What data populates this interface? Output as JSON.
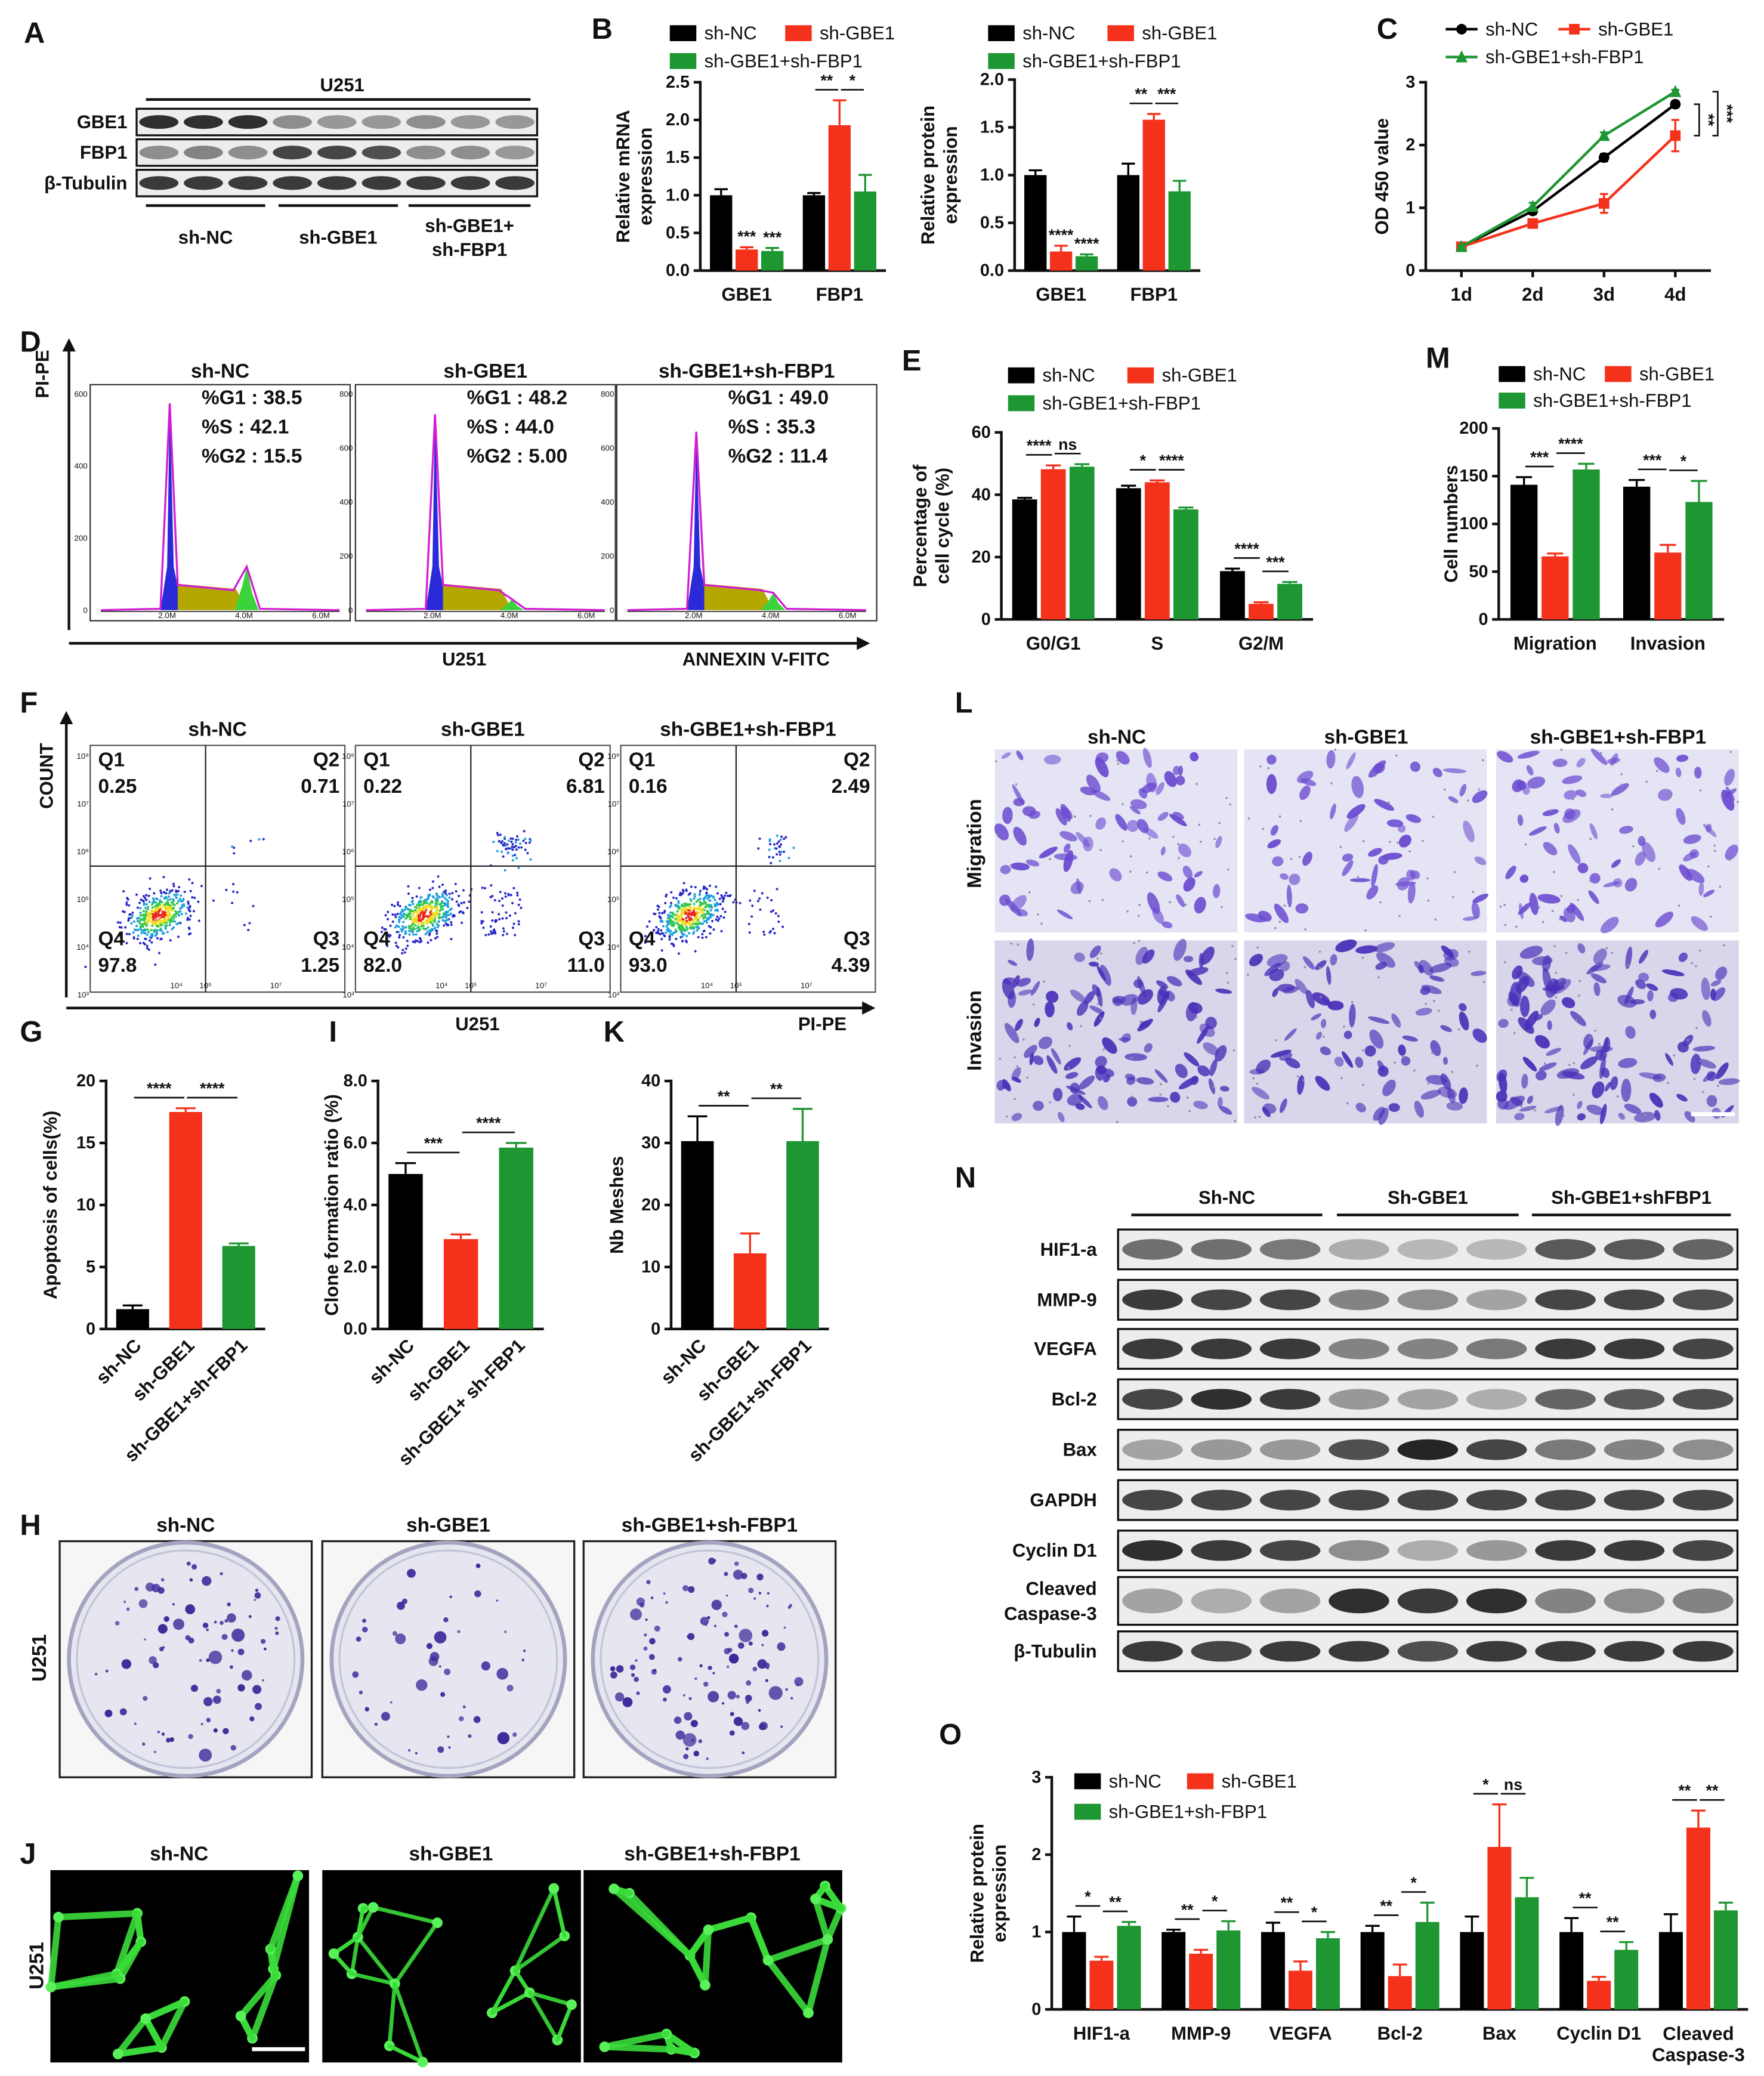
{
  "figure": {
    "panel_letters": [
      "A",
      "B",
      "C",
      "D",
      "E",
      "M",
      "F",
      "L",
      "G",
      "I",
      "K",
      "N",
      "H",
      "J",
      "O"
    ],
    "blot_A": {
      "cell_line": "U251",
      "proteins": [
        "GBE1",
        "FBP1",
        "β-Tubulin"
      ],
      "groups": [
        "sh-NC",
        "sh-GBE1",
        [
          "sh-GBE1+",
          "sh-FBP1"
        ]
      ]
    },
    "cell_cycle_D": {
      "y_axis": "PI-PE",
      "x_axis_left": "U251",
      "x_axis_right": "ANNEXIN V-FITC",
      "xticks": [
        "2.0M",
        "4.0M",
        "6.0M"
      ],
      "plots": [
        {
          "title": "sh-NC",
          "stats": [
            "%G1 : 38.5",
            "%S : 42.1",
            "%G2 : 15.5"
          ],
          "yticks": [
            "600",
            "400",
            "200",
            "0"
          ]
        },
        {
          "title": "sh-GBE1",
          "stats": [
            "%G1 : 48.2",
            "%S : 44.0",
            "%G2 : 5.00"
          ],
          "yticks": [
            "800",
            "600",
            "400",
            "200",
            "0"
          ]
        },
        {
          "title": "sh-GBE1+sh-FBP1",
          "stats": [
            "%G1 : 49.0",
            "%S : 35.3",
            "%G2 : 11.4"
          ],
          "yticks": [
            "800",
            "600",
            "400",
            "200",
            "0"
          ]
        }
      ]
    },
    "apoptosis_F": {
      "y_axis": "COUNT",
      "x_axis_left": "U251",
      "x_axis_right": "PI-PE",
      "yticks": [
        "10⁸",
        "10⁷",
        "10⁶",
        "10⁵",
        "10⁴",
        "10³"
      ],
      "xticks": [
        "10⁴",
        "10⁵",
        "10⁷"
      ],
      "plots": [
        {
          "title": "sh-NC",
          "quadrants": [
            [
              "Q1",
              "0.25"
            ],
            [
              "Q2",
              "0.71"
            ],
            [
              "Q3",
              "1.25"
            ],
            [
              "Q4",
              "97.8"
            ]
          ]
        },
        {
          "title": "sh-GBE1",
          "quadrants": [
            [
              "Q1",
              "0.22"
            ],
            [
              "Q2",
              "6.81"
            ],
            [
              "Q3",
              "11.0"
            ],
            [
              "Q4",
              "82.0"
            ]
          ]
        },
        {
          "title": "sh-GBE1+sh-FBP1",
          "quadrants": [
            [
              "Q1",
              "0.16"
            ],
            [
              "Q2",
              "2.49"
            ],
            [
              "Q3",
              "4.39"
            ],
            [
              "Q4",
              "93.0"
            ]
          ]
        }
      ]
    },
    "transwell_L": {
      "columns": [
        "sh-NC",
        "sh-GBE1",
        "sh-GBE1+sh-FBP1"
      ],
      "rows": [
        "Migration",
        "Invasion"
      ]
    },
    "colony_H": {
      "columns": [
        "sh-NC",
        "sh-GBE1",
        "sh-GBE1+sh-FBP1"
      ],
      "row": "U251"
    },
    "tube_J": {
      "columns": [
        "sh-NC",
        "sh-GBE1",
        "sh-GBE1+sh-FBP1"
      ],
      "row": "U251"
    },
    "blot_N": {
      "groups": [
        "Sh-NC",
        "Sh-GBE1",
        "Sh-GBE1+shFBP1"
      ],
      "proteins": [
        "HIF1-a",
        "MMP-9",
        "VEGFA",
        "Bcl-2",
        "Bax",
        "GAPDH",
        "Cyclin D1",
        [
          "Cleaved",
          "Caspase-3"
        ],
        "β-Tubulin"
      ]
    }
  },
  "chart_data": [
    {
      "type": "bar",
      "categories": [
        "GBE1",
        "FBP1"
      ],
      "ylabel": [
        "Relative  mRNA",
        "expression"
      ],
      "series": [
        {
          "name": "sh-NC",
          "color": "#000000",
          "values": [
            1.0,
            1.0
          ],
          "errors": [
            0.08,
            0.03
          ]
        },
        {
          "name": "sh-GBE1",
          "color": "#f4321c",
          "values": [
            0.28,
            1.93
          ],
          "errors": [
            0.03,
            0.33
          ]
        },
        {
          "name": "sh-GBE1+sh-FBP1",
          "color": "#1e9632",
          "values": [
            0.26,
            1.05
          ],
          "errors": [
            0.04,
            0.22
          ]
        }
      ],
      "ylim": [
        0,
        2.5
      ],
      "yticks": [
        {
          "value": 0,
          "label": "0.0"
        },
        0.5,
        {
          "value": 1,
          "label": "1.0"
        },
        1.5,
        {
          "value": 2,
          "label": "2.0"
        },
        2.5
      ],
      "annotations": [
        "***",
        "***",
        "**",
        "*"
      ]
    },
    {
      "type": "bar",
      "categories": [
        "GBE1",
        "FBP1"
      ],
      "ylabel": [
        "Relative  protein",
        "expression"
      ],
      "series": [
        {
          "name": "sh-NC",
          "color": "#000000",
          "values": [
            1.0,
            1.0
          ],
          "errors": [
            0.05,
            0.12
          ]
        },
        {
          "name": "sh-GBE1",
          "color": "#f4321c",
          "values": [
            0.2,
            1.58
          ],
          "errors": [
            0.06,
            0.06
          ]
        },
        {
          "name": "sh-GBE1+sh-FBP1",
          "color": "#1e9632",
          "values": [
            0.15,
            0.83
          ],
          "errors": [
            0.02,
            0.11
          ]
        }
      ],
      "ylim": [
        0,
        2
      ],
      "yticks": [
        {
          "value": 0,
          "label": "0.0"
        },
        0.5,
        {
          "value": 1,
          "label": "1.0"
        },
        1.5,
        {
          "value": 2,
          "label": "2.0"
        }
      ],
      "annotations": [
        "****",
        "****",
        "**",
        "***"
      ]
    },
    {
      "type": "line",
      "categories": [
        "1d",
        "2d",
        "3d",
        "4d"
      ],
      "ylabel": "OD 450 value",
      "series": [
        {
          "name": "sh-NC",
          "color": "#000000",
          "marker": "circle",
          "values": [
            0.38,
            0.95,
            1.8,
            2.65
          ],
          "errors": [
            0.02,
            0.05,
            0.06,
            0.05
          ]
        },
        {
          "name": "sh-GBE1",
          "color": "#f4321c",
          "marker": "square",
          "values": [
            0.38,
            0.75,
            1.07,
            2.15
          ],
          "errors": [
            0.02,
            0.04,
            0.15,
            0.25
          ]
        },
        {
          "name": "sh-GBE1+sh-FBP1",
          "color": "#1e9632",
          "marker": "triangle",
          "values": [
            0.38,
            1.02,
            2.15,
            2.85
          ],
          "errors": [
            0.02,
            0.06,
            0.05,
            0.03
          ]
        }
      ],
      "ylim": [
        0,
        3
      ],
      "yticks": [
        0,
        1,
        2,
        3
      ],
      "annotations": [
        "**",
        "***"
      ]
    },
    {
      "type": "bar",
      "categories": [
        "G0/G1",
        "S",
        "G2/M"
      ],
      "ylabel": [
        "Percentage of",
        "cell cycle (%)"
      ],
      "series": [
        {
          "name": "sh-NC",
          "color": "#000000",
          "values": [
            38.5,
            42.1,
            15.5
          ],
          "errors": [
            0.5,
            0.8,
            0.8
          ]
        },
        {
          "name": "sh-GBE1",
          "color": "#f4321c",
          "values": [
            48.2,
            44.0,
            5.0
          ],
          "errors": [
            1.2,
            0.6,
            0.5
          ]
        },
        {
          "name": "sh-GBE1+sh-FBP1",
          "color": "#1e9632",
          "values": [
            49.0,
            35.3,
            11.4
          ],
          "errors": [
            0.8,
            0.6,
            0.6
          ]
        }
      ],
      "ylim": [
        0,
        60
      ],
      "yticks": [
        0,
        20,
        40,
        60
      ],
      "annotations": [
        "****",
        "ns",
        "*",
        "****",
        "****",
        "***"
      ]
    },
    {
      "type": "bar",
      "categories": [
        "Migration",
        "Invasion"
      ],
      "ylabel": "Cell numbers",
      "series": [
        {
          "name": "sh-NC",
          "color": "#000000",
          "values": [
            141,
            139
          ],
          "errors": [
            8,
            7
          ]
        },
        {
          "name": "sh-GBE1",
          "color": "#f4321c",
          "values": [
            66,
            70
          ],
          "errors": [
            3,
            8
          ]
        },
        {
          "name": "sh-GBE1+sh-FBP1",
          "color": "#1e9632",
          "values": [
            157,
            123
          ],
          "errors": [
            6,
            22
          ]
        }
      ],
      "ylim": [
        0,
        200
      ],
      "yticks": [
        0,
        50,
        100,
        150,
        200
      ],
      "annotations": [
        "***",
        "****",
        "***",
        "*"
      ]
    },
    {
      "type": "bar",
      "categories": [
        "sh-NC",
        "sh-GBE1",
        "sh-GBE1+sh-FBP1"
      ],
      "ylabel": "Apoptosis of cells(%)",
      "values": [
        1.6,
        17.5,
        6.7
      ],
      "errors": [
        0.3,
        0.3,
        0.2
      ],
      "colors": [
        "#000000",
        "#f4321c",
        "#1e9632"
      ],
      "ylim": [
        0,
        20
      ],
      "yticks": [
        0,
        5,
        10,
        15,
        20
      ],
      "annotations": [
        "****",
        "****"
      ]
    },
    {
      "type": "bar",
      "categories": [
        "sh-NC",
        "sh-GBE1",
        "sh-GBE1+ sh-FBP1"
      ],
      "ylabel": "Clone formation ratio (%)",
      "values": [
        5.0,
        2.9,
        5.85
      ],
      "errors": [
        0.35,
        0.15,
        0.15
      ],
      "colors": [
        "#000000",
        "#f4321c",
        "#1e9632"
      ],
      "ylim": [
        0,
        8
      ],
      "yticks": [
        {
          "value": 0,
          "label": "0.0"
        },
        {
          "value": 2,
          "label": "2.0"
        },
        {
          "value": 4,
          "label": "4.0"
        },
        {
          "value": 6,
          "label": "6.0"
        },
        {
          "value": 8,
          "label": "8.0"
        }
      ],
      "annotations": [
        "***",
        "****"
      ]
    },
    {
      "type": "bar",
      "categories": [
        "sh-NC",
        "sh-GBE1",
        "sh-GBE1+sh-FBP1"
      ],
      "ylabel": "Nb Meshes",
      "values": [
        30.3,
        12.2,
        30.3
      ],
      "errors": [
        4.0,
        3.2,
        5.2
      ],
      "colors": [
        "#000000",
        "#f4321c",
        "#1e9632"
      ],
      "ylim": [
        0,
        40
      ],
      "yticks": [
        0,
        10,
        20,
        30,
        40
      ],
      "annotations": [
        "**",
        "**"
      ]
    },
    {
      "type": "bar",
      "categories": [
        "HIF1-a",
        "MMP-9",
        "VEGFA",
        "Bcl-2",
        "Bax",
        "Cyclin D1",
        [
          "Cleaved",
          "Caspase-3"
        ]
      ],
      "ylabel": [
        "Relative  protein",
        "expression"
      ],
      "series": [
        {
          "name": "sh-NC",
          "color": "#000000",
          "values": [
            1,
            1,
            1,
            1,
            1,
            1,
            1
          ],
          "errors": [
            0.2,
            0.03,
            0.12,
            0.08,
            0.2,
            0.18,
            0.23
          ]
        },
        {
          "name": "sh-GBE1",
          "color": "#f4321c",
          "values": [
            0.63,
            0.72,
            0.5,
            0.43,
            2.1,
            0.37,
            2.35
          ],
          "errors": [
            0.05,
            0.05,
            0.12,
            0.15,
            0.55,
            0.05,
            0.22
          ]
        },
        {
          "name": "sh-GBE1+sh-FBP1",
          "color": "#1e9632",
          "values": [
            1.08,
            1.02,
            0.92,
            1.13,
            1.45,
            0.77,
            1.28
          ],
          "errors": [
            0.05,
            0.12,
            0.08,
            0.25,
            0.25,
            0.1,
            0.1
          ]
        }
      ],
      "ylim": [
        0,
        3
      ],
      "yticks": [
        0,
        1,
        2,
        3
      ],
      "annotations": [
        "*",
        "**",
        "**",
        "*",
        "**",
        "*",
        "**",
        "*",
        "*",
        "ns",
        "**",
        "**",
        "**",
        "**"
      ]
    }
  ]
}
